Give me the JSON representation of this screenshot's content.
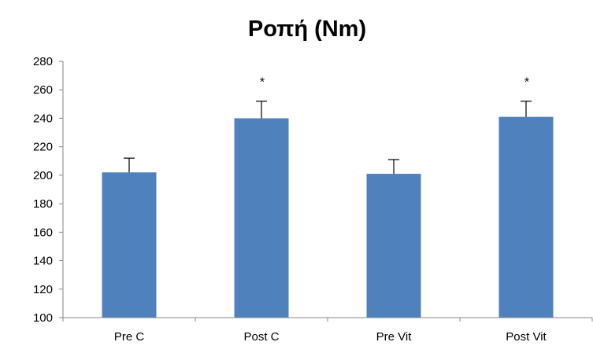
{
  "chart_data": {
    "type": "bar",
    "title": "Ροπή (Nm)",
    "xlabel": "",
    "ylabel": "",
    "categories": [
      "Pre C",
      "Post C",
      "Pre Vit",
      "Post Vit"
    ],
    "series": [
      {
        "values": [
          202,
          240,
          201,
          241
        ],
        "error": [
          10,
          12,
          10,
          11
        ],
        "color": "#4F81BD"
      }
    ],
    "annotations": [
      "",
      "*",
      "",
      "*"
    ],
    "ylim": [
      100,
      280
    ],
    "yticks": [
      100,
      120,
      140,
      160,
      180,
      200,
      220,
      240,
      260,
      280
    ],
    "grid": false,
    "legend": "none",
    "axis_color": "#868686",
    "error_bar_color": "#000000"
  }
}
